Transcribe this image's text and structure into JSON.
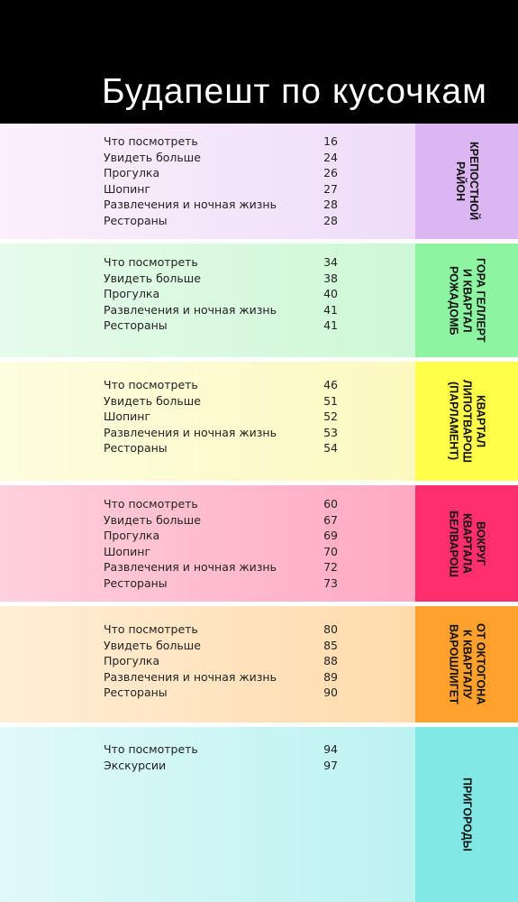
{
  "header": {
    "title": "Будапешт по кусочкам"
  },
  "sections": [
    {
      "label": [
        "КРЕПОСТНОЙ",
        "РАЙОН"
      ],
      "items": [
        {
          "name": "Что посмотреть",
          "page": 16
        },
        {
          "name": "Увидеть больше",
          "page": 24
        },
        {
          "name": "Прогулка",
          "page": 26
        },
        {
          "name": "Шопинг",
          "page": 27
        },
        {
          "name": "Развлечения и ночная жизнь",
          "page": 28
        },
        {
          "name": "Рестораны",
          "page": 28
        }
      ]
    },
    {
      "label": [
        "ГОРА ГЕЛЛЕРТ",
        "И КВАРТАЛ",
        "РОЖАДОМБ"
      ],
      "items": [
        {
          "name": "Что посмотреть",
          "page": 34
        },
        {
          "name": "Увидеть больше",
          "page": 38
        },
        {
          "name": "Прогулка",
          "page": 40
        },
        {
          "name": "Развлечения и ночная жизнь",
          "page": 41
        },
        {
          "name": "Рестораны",
          "page": 41
        }
      ]
    },
    {
      "label": [
        "КВАРТАЛ",
        "ЛИПОТВАРОШ",
        "(ПАРЛАМЕНТ)"
      ],
      "items": [
        {
          "name": "Что посмотреть",
          "page": 46
        },
        {
          "name": "Увидеть больше",
          "page": 51
        },
        {
          "name": "Шопинг",
          "page": 52
        },
        {
          "name": "Развлечения и ночная жизнь",
          "page": 53
        },
        {
          "name": "Рестораны",
          "page": 54
        }
      ]
    },
    {
      "label": [
        "ВОКРУГ",
        "КВАРТАЛА",
        "БЕЛВАРОШ"
      ],
      "items": [
        {
          "name": "Что посмотреть",
          "page": 60
        },
        {
          "name": "Увидеть больше",
          "page": 67
        },
        {
          "name": "Прогулка",
          "page": 69
        },
        {
          "name": "Шопинг",
          "page": 70
        },
        {
          "name": "Развлечения и ночная жизнь",
          "page": 72
        },
        {
          "name": "Рестораны",
          "page": 73
        }
      ]
    },
    {
      "label": [
        "ОТ ОКТОГОНА",
        "К КВАРТАЛУ",
        "ВАРОШЛИГЕТ"
      ],
      "items": [
        {
          "name": "Что посмотреть",
          "page": 80
        },
        {
          "name": "Увидеть больше",
          "page": 85
        },
        {
          "name": "Прогулка",
          "page": 88
        },
        {
          "name": "Развлечения и ночная жизнь",
          "page": 89
        },
        {
          "name": "Рестораны",
          "page": 90
        }
      ]
    },
    {
      "label": [
        "ПРИГОРОДЫ"
      ],
      "items": [
        {
          "name": "Что посмотреть",
          "page": 94
        },
        {
          "name": "Экскурсии",
          "page": 97
        }
      ]
    }
  ]
}
